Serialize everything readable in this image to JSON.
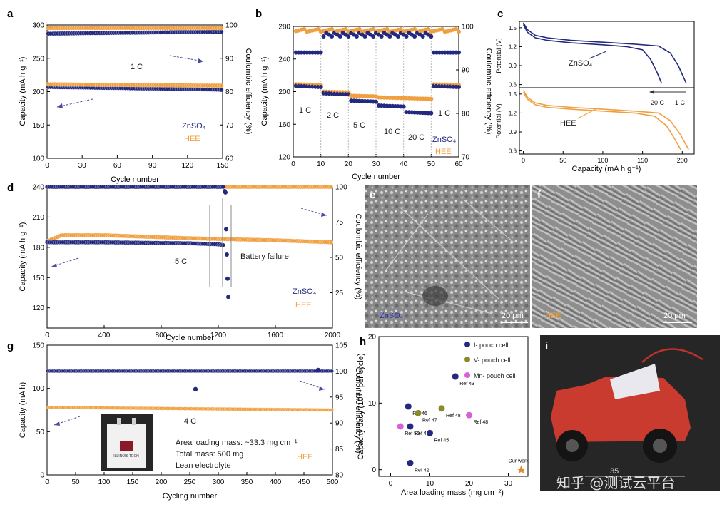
{
  "colors": {
    "navy": "#232a7e",
    "orange": "#f0a040",
    "olive": "#8a8a2a",
    "magenta": "#d860d8",
    "photo_bg": "#262626"
  },
  "chart_data": [
    {
      "id": "a",
      "panel_label": "a",
      "type": "scatter",
      "xlabel": "Cycle number",
      "ylabel": "Capacity (mA h g⁻¹)",
      "y2label": "Coulombic efficiency (%)",
      "xlim": [
        0,
        150
      ],
      "ylim": [
        100,
        300
      ],
      "y2lim": [
        60,
        100
      ],
      "xticks": [
        0,
        30,
        60,
        90,
        120,
        150
      ],
      "yticks": [
        100,
        150,
        200,
        250,
        300
      ],
      "y2ticks": [
        60,
        70,
        80,
        90,
        100
      ],
      "annotations": [
        "1 C"
      ],
      "legend": [
        "ZnSO₄",
        "HEE"
      ],
      "series": [
        {
          "name": "ZnSO₄",
          "kind": "capacity",
          "axis": "left",
          "color": "navy",
          "x": [
            1,
            150
          ],
          "y": [
            207,
            203
          ]
        },
        {
          "name": "HEE",
          "kind": "capacity",
          "axis": "left",
          "color": "orange",
          "x": [
            1,
            150
          ],
          "y": [
            211,
            209
          ]
        },
        {
          "name": "ZnSO₄",
          "kind": "ce",
          "axis": "right",
          "color": "navy",
          "x": [
            1,
            150
          ],
          "y": [
            97.4,
            98.0
          ]
        },
        {
          "name": "HEE",
          "kind": "ce",
          "axis": "right",
          "color": "orange",
          "x": [
            1,
            150
          ],
          "y": [
            99.1,
            99.1
          ]
        }
      ]
    },
    {
      "id": "b",
      "panel_label": "b",
      "type": "scatter",
      "xlabel": "Cycle number",
      "ylabel": "Capacity (mA h g⁻¹)",
      "y2label": "Coulombic efficiency (%)",
      "xlim": [
        0,
        60
      ],
      "ylim": [
        120,
        280
      ],
      "y2lim": [
        70,
        100
      ],
      "xticks": [
        0,
        10,
        20,
        30,
        40,
        50,
        60
      ],
      "yticks": [
        120,
        160,
        200,
        240,
        280
      ],
      "y2ticks": [
        70,
        80,
        90,
        100
      ],
      "rate_labels": [
        "1 C",
        "2 C",
        "5 C",
        "10 C",
        "20 C",
        "1 C"
      ],
      "legend": [
        "ZnSO₄",
        "HEE"
      ],
      "segments": [
        {
          "x": [
            1,
            10
          ],
          "hee": 209,
          "zn": 207
        },
        {
          "x": [
            11,
            20
          ],
          "hee": 200,
          "zn": 198
        },
        {
          "x": [
            21,
            30
          ],
          "hee": 195,
          "zn": 189
        },
        {
          "x": [
            31,
            40
          ],
          "hee": 193,
          "zn": 183
        },
        {
          "x": [
            41,
            50
          ],
          "hee": 192,
          "zn": 175
        },
        {
          "x": [
            51,
            60
          ],
          "hee": 209,
          "zn": 207
        }
      ],
      "ce": {
        "hee": [
          98.8,
          99.5
        ],
        "zn_low": [
          94.0,
          98.5
        ]
      }
    },
    {
      "id": "c",
      "panel_label": "c",
      "type": "line",
      "xlabel": "Capacity (mA h g⁻¹)",
      "ylabel_top": "Potential (V)",
      "ylabel_bottom": "Potential (V)",
      "xlim": [
        -5,
        215
      ],
      "ylim_top": [
        0.55,
        1.6
      ],
      "ylim_bottom": [
        0.55,
        1.6
      ],
      "xticks": [
        0,
        50,
        100,
        150,
        200
      ],
      "yticks": [
        0.6,
        0.9,
        1.2,
        1.5
      ],
      "labels_top": [
        "ZnSO₄"
      ],
      "labels_bottom": [
        "HEE"
      ],
      "rate_labels": [
        "20 C",
        "1 C"
      ],
      "series": [
        {
          "name": "ZnSO₄ 1 C",
          "panel": "top",
          "color": "navy",
          "x": [
            0,
            5,
            15,
            30,
            60,
            100,
            140,
            170,
            185,
            195,
            205
          ],
          "y": [
            1.58,
            1.47,
            1.38,
            1.34,
            1.3,
            1.27,
            1.24,
            1.21,
            1.1,
            0.9,
            0.62
          ]
        },
        {
          "name": "ZnSO₄ 20 C",
          "panel": "top",
          "color": "navy",
          "x": [
            0,
            5,
            15,
            30,
            60,
            100,
            130,
            150,
            160,
            168,
            174
          ],
          "y": [
            1.55,
            1.43,
            1.34,
            1.3,
            1.26,
            1.23,
            1.2,
            1.15,
            1.0,
            0.8,
            0.62
          ]
        },
        {
          "name": "HEE 1 C",
          "panel": "bottom",
          "color": "orange",
          "x": [
            0,
            5,
            15,
            30,
            60,
            100,
            140,
            170,
            185,
            198,
            208
          ],
          "y": [
            1.56,
            1.45,
            1.36,
            1.32,
            1.29,
            1.26,
            1.23,
            1.2,
            1.08,
            0.85,
            0.62
          ]
        },
        {
          "name": "HEE 20 C",
          "panel": "bottom",
          "color": "orange",
          "x": [
            0,
            5,
            15,
            30,
            60,
            100,
            140,
            165,
            180,
            190,
            198
          ],
          "y": [
            1.53,
            1.42,
            1.33,
            1.29,
            1.26,
            1.23,
            1.2,
            1.15,
            1.0,
            0.8,
            0.62
          ]
        }
      ]
    },
    {
      "id": "d",
      "panel_label": "d",
      "type": "scatter",
      "xlabel": "Cycle number",
      "ylabel": "Capacity (mA h g⁻¹)",
      "y2label": "Coulombic efficiency (%)",
      "xlim": [
        0,
        2000
      ],
      "ylim": [
        100,
        240
      ],
      "y2lim": [
        0,
        100
      ],
      "xticks": [
        0,
        400,
        800,
        1200,
        1600,
        2000
      ],
      "yticks": [
        120,
        150,
        180,
        210,
        240
      ],
      "y2ticks": [
        25,
        50,
        75,
        100
      ],
      "annotations": [
        "5 C",
        "Battery failure"
      ],
      "legend": [
        "ZnSO₄",
        "HEE"
      ],
      "series": [
        {
          "name": "HEE",
          "kind": "capacity",
          "axis": "left",
          "color": "orange",
          "x": [
            1,
            100,
            400,
            1000,
            1600,
            2000
          ],
          "y": [
            186,
            192,
            192,
            189,
            187,
            185
          ]
        },
        {
          "name": "ZnSO₄",
          "kind": "capacity",
          "axis": "left",
          "color": "navy",
          "x": [
            1,
            100,
            400,
            1000,
            1200,
            1240
          ],
          "y": [
            185,
            185,
            185,
            184,
            183,
            182
          ]
        },
        {
          "name": "HEE",
          "kind": "ce",
          "axis": "right",
          "color": "orange",
          "x": [
            1,
            2000
          ],
          "y": [
            100,
            100
          ]
        },
        {
          "name": "ZnSO₄",
          "kind": "ce",
          "axis": "right",
          "color": "navy",
          "x": [
            1,
            1240
          ],
          "y": [
            100,
            100
          ]
        },
        {
          "name": "ZnSO₄ failure points",
          "kind": "ce",
          "axis": "right",
          "color": "navy",
          "x": [
            1245,
            1250,
            1255,
            1260,
            1265,
            1270
          ],
          "y": [
            97,
            96,
            70,
            52,
            35,
            22
          ]
        }
      ]
    },
    {
      "id": "g",
      "panel_label": "g",
      "type": "scatter",
      "xlabel": "Cycling number",
      "ylabel": "Capacity (mA h)",
      "y2label": "Coulombic efficiency (%)",
      "xlim": [
        0,
        500
      ],
      "ylim": [
        0,
        150
      ],
      "y2lim": [
        80,
        105
      ],
      "xticks": [
        0,
        50,
        100,
        150,
        200,
        250,
        300,
        350,
        400,
        450,
        500
      ],
      "yticks": [
        0,
        50,
        100,
        150
      ],
      "y2ticks": [
        80,
        85,
        90,
        95,
        100,
        105
      ],
      "annotations": [
        "4 C",
        "HEE",
        "Area loading mass: ~33.3 mg cm⁻¹",
        "Total mass: 500 mg",
        "Lean electrolyte"
      ],
      "series": [
        {
          "name": "HEE",
          "kind": "capacity",
          "axis": "left",
          "color": "orange",
          "x": [
            1,
            500
          ],
          "y": [
            78,
            75
          ]
        },
        {
          "name": "HEE",
          "kind": "ce",
          "axis": "right",
          "color": "navy",
          "x": [
            1,
            500
          ],
          "y": [
            100,
            100
          ]
        },
        {
          "name": "HEE outliers",
          "kind": "ce",
          "axis": "right",
          "color": "navy",
          "x": [
            260,
            475
          ],
          "y": [
            96.5,
            100.2
          ]
        }
      ]
    },
    {
      "id": "h",
      "panel_label": "h",
      "type": "scatter",
      "xlabel": "Area loading mass (mg cm⁻²)",
      "ylabel": "Capacity dacy (10⁻⁴ per cycle)",
      "xlim": [
        -3,
        35
      ],
      "ylim": [
        -1,
        20
      ],
      "xticks": [
        0,
        10,
        20,
        30
      ],
      "yticks": [
        0,
        10,
        20
      ],
      "legend": [
        "I- pouch cell",
        "V- pouch cell",
        "Mn- pouch cell"
      ],
      "points": [
        {
          "label": "Ref 42",
          "x": 5.0,
          "y": 1.0,
          "group": "I"
        },
        {
          "label": "Ref 43",
          "x": 16.5,
          "y": 14.0,
          "group": "I"
        },
        {
          "label": "Ref 44",
          "x": 5.0,
          "y": 6.5,
          "group": "I"
        },
        {
          "label": "Ref 45",
          "x": 10.0,
          "y": 5.5,
          "group": "I"
        },
        {
          "label": "Ref 46",
          "x": 4.5,
          "y": 9.5,
          "group": "I"
        },
        {
          "label": "Ref 47",
          "x": 7.0,
          "y": 8.5,
          "group": "V"
        },
        {
          "label": "Ref 48",
          "x": 13.0,
          "y": 9.2,
          "group": "V"
        },
        {
          "label": "Ref 48",
          "x": 20.0,
          "y": 8.2,
          "group": "Mn"
        },
        {
          "label": "Ref 50",
          "x": 2.5,
          "y": 6.5,
          "group": "Mn"
        },
        {
          "label": "Our work",
          "x": 33.3,
          "y": 0.0,
          "group": "ours"
        }
      ]
    }
  ],
  "images": {
    "e": {
      "panel_label": "e",
      "caption": "ZnSO₄",
      "scale": "20 μm"
    },
    "f": {
      "panel_label": "f",
      "caption": "HEE",
      "scale": "20 μm"
    },
    "i": {
      "panel_label": "i",
      "scale_number": "35"
    },
    "g_inset": {
      "pouch_text": "ILLINOIS TECH"
    }
  },
  "watermark": "知乎 @测试云平台"
}
